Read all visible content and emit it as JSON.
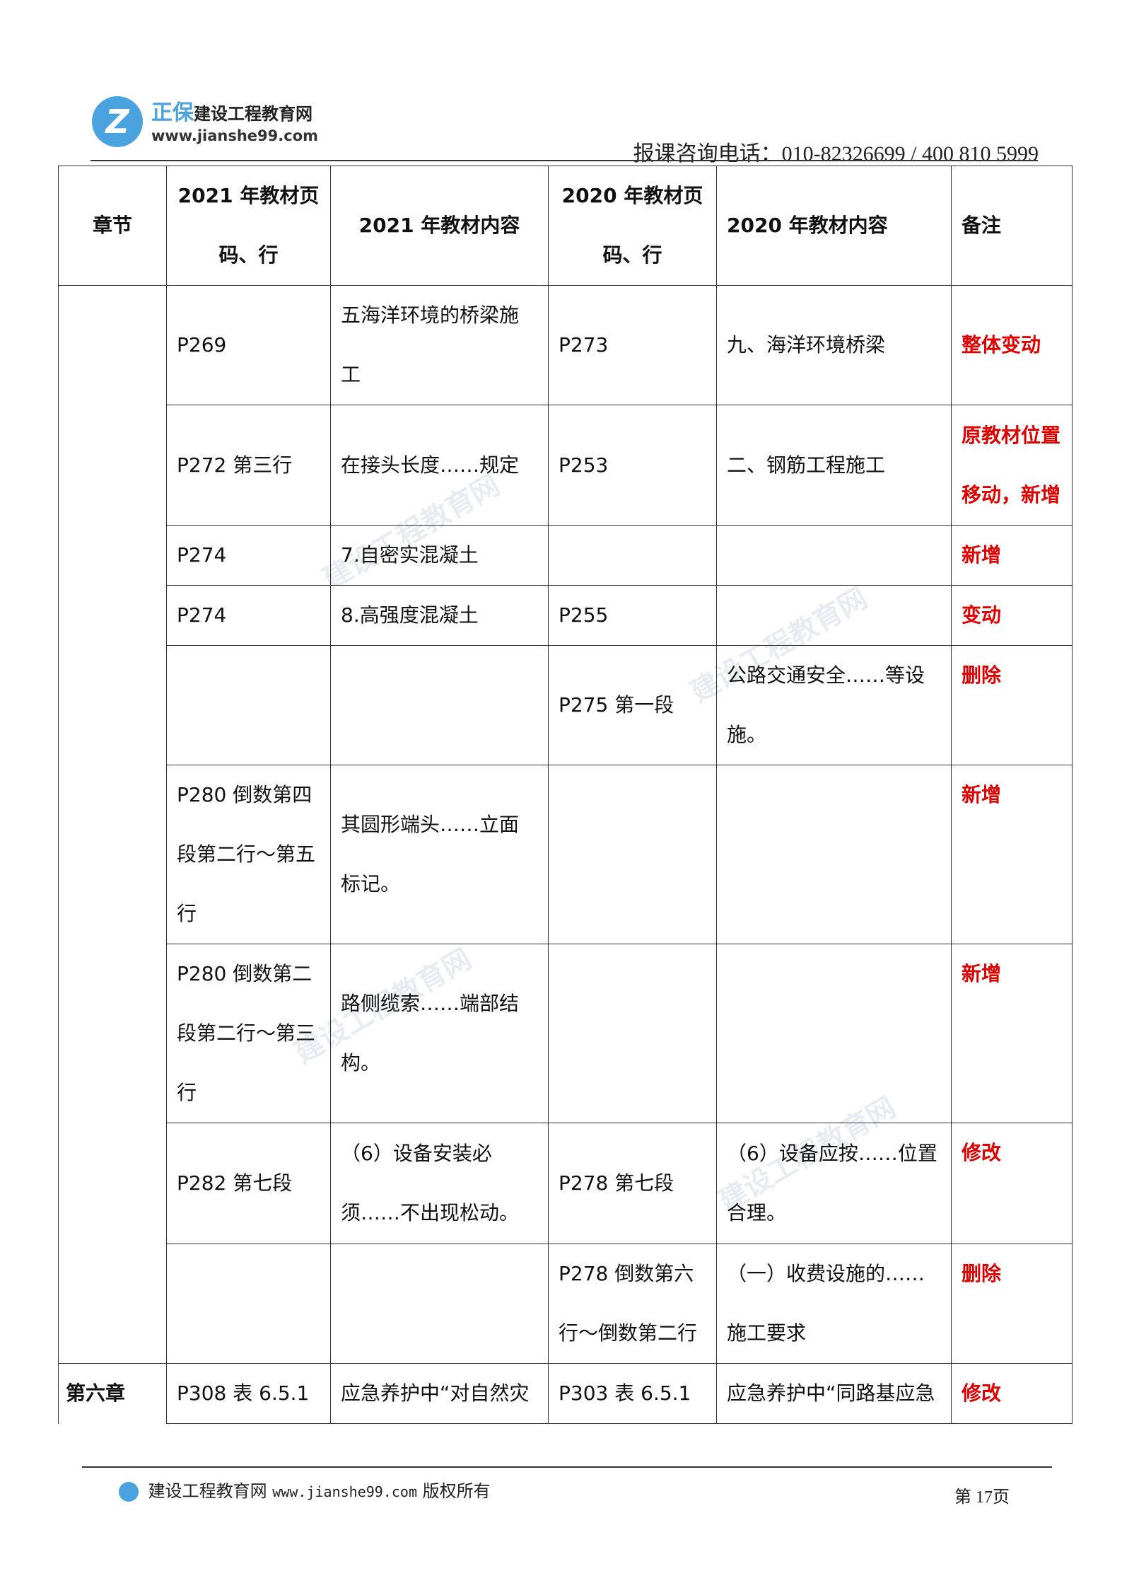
{
  "header": {
    "logo_brand": "正保",
    "logo_name": "建设工程教育网",
    "logo_url": "www.jianshe99.com",
    "phone": "报课咨询电话：010-82326699 / 400 810 5999"
  },
  "table": {
    "headers": [
      "章节",
      "2021 年教材页码、行",
      "2021 年教材内容",
      "2020 年教材页码、行",
      "2020 年教材内容",
      "备注"
    ],
    "rows": [
      {
        "p2021": "P269",
        "c2021": "五海洋环境的桥梁施工",
        "p2020": "P273",
        "c2020": "九、海洋环境桥梁",
        "note": "整体变动"
      },
      {
        "p2021": "P272 第三行",
        "c2021": "在接头长度……规定",
        "p2020": "P253",
        "c2020": "二、钢筋工程施工",
        "note": "原教材位置移动，新增"
      },
      {
        "p2021": "P274",
        "c2021": "7.自密实混凝土",
        "p2020": "",
        "c2020": "",
        "note": "新增"
      },
      {
        "p2021": "P274",
        "c2021": "8.高强度混凝土",
        "p2020": "P255",
        "c2020": "",
        "note": "变动"
      },
      {
        "p2021": "",
        "c2021": "",
        "p2020": "P275 第一段",
        "c2020": "公路交通安全……等设施。",
        "note": "删除"
      },
      {
        "p2021": "P280 倒数第四段第二行～第五行",
        "c2021": "其圆形端头……立面标记。",
        "p2020": "",
        "c2020": "",
        "note": "新增"
      },
      {
        "p2021": "P280 倒数第二段第二行～第三行",
        "c2021": "路侧缆索……端部结构。",
        "p2020": "",
        "c2020": "",
        "note": "新增"
      },
      {
        "p2021": "P282 第七段",
        "c2021": "（6）设备安装必须……不出现松动。",
        "p2020": "P278 第七段",
        "c2020": "（6）设备应按……位置合理。",
        "note": "修改"
      },
      {
        "p2021": "",
        "c2021": "",
        "p2020": "P278 倒数第六行～倒数第二行",
        "c2020": "（一）收费设施的……施工要求",
        "note": "删除"
      },
      {
        "chapter": "第六章",
        "p2021": "P308 表 6.5.1",
        "c2021": "应急养护中“对自然灾",
        "p2020": "P303 表 6.5.1",
        "c2020": "应急养护中“同路基应急",
        "note": "修改"
      }
    ]
  },
  "footer": {
    "site": "建设工程教育网",
    "url": "www.jianshe99.com",
    "rights": "版权所有",
    "page": "第 17页"
  },
  "colors": {
    "note_red": "#e00000",
    "brand_blue": "#4aa3df"
  }
}
